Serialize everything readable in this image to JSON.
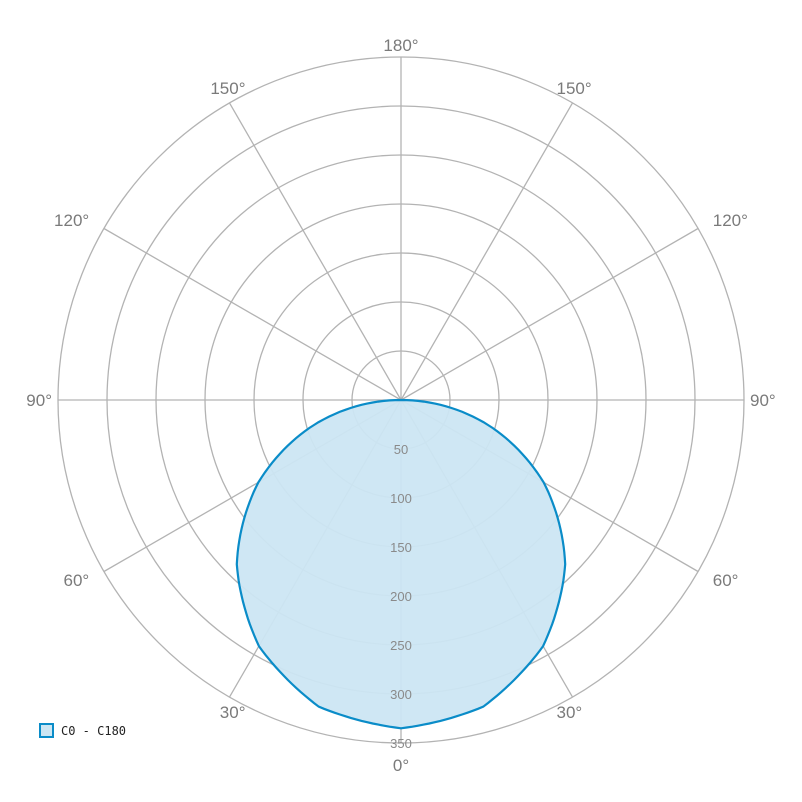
{
  "chart_data": {
    "type": "polar",
    "radial_ticks": [
      50,
      100,
      150,
      200,
      250,
      300,
      350
    ],
    "radial_max": 350,
    "angle_labels": [
      "0°",
      "30°",
      "60°",
      "90°",
      "120°",
      "150°",
      "180°"
    ],
    "grid": true,
    "legend_position": "bottom-left",
    "series": [
      {
        "name": "C0 - C180",
        "color": "#0a8cc8",
        "fill": "#cce6f3",
        "angles": [
          0,
          15,
          30,
          45,
          60,
          75,
          90
        ],
        "values": [
          335,
          324,
          290,
          237,
          168,
          87,
          0
        ]
      }
    ]
  }
}
